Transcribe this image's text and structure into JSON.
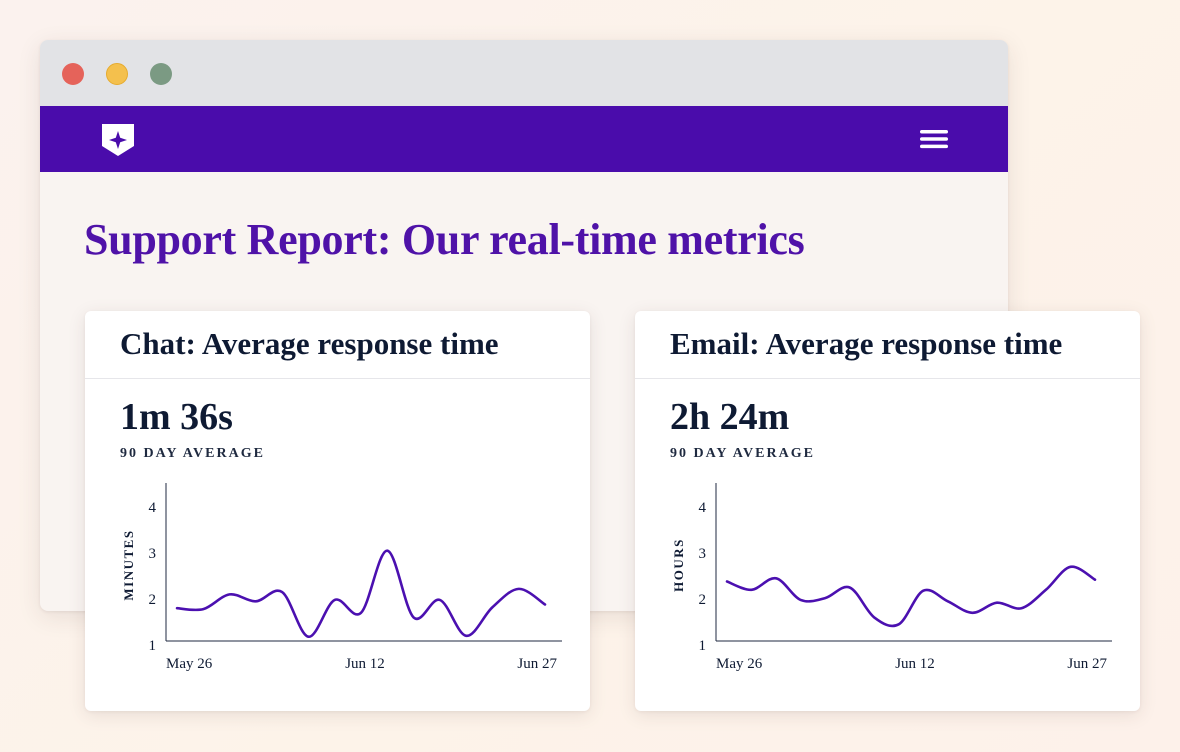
{
  "page": {
    "title": "Support Report: Our real-time metrics"
  },
  "browser": {
    "controls": [
      "close",
      "minimize",
      "maximize"
    ]
  },
  "navbar": {
    "logo_icon": "shield-star-icon",
    "menu_icon": "hamburger-menu-icon",
    "color": "#4a0cab"
  },
  "cards": [
    {
      "title": "Chat: Average response time",
      "value": "1m 36s",
      "subtitle": "90 DAY AVERAGE"
    },
    {
      "title": "Email: Average response time",
      "value": "2h 24m",
      "subtitle": "90 DAY AVERAGE"
    }
  ],
  "chart_data": [
    {
      "type": "line",
      "ylabel": "MINUTES",
      "xlabel": "",
      "ylim": [
        1,
        4
      ],
      "yticks": [
        "1",
        "2",
        "3",
        "4"
      ],
      "xticks": [
        "May 26",
        "Jun 12",
        "Jun 27"
      ],
      "grid": false,
      "line_color": "#4b10b0",
      "series": [
        {
          "x": [
            "May 22",
            "May 24",
            "May 26",
            "May 28",
            "May 30",
            "Jun 1",
            "Jun 3",
            "Jun 5",
            "Jun 7",
            "Jun 9",
            "Jun 11",
            "Jun 13",
            "Jun 15",
            "Jun 17",
            "Jun 19",
            "Jun 21",
            "Jun 23",
            "Jun 25",
            "Jun 27",
            "Jun 29"
          ],
          "values": [
            1.8,
            1.78,
            2.1,
            1.95,
            2.15,
            1.18,
            1.98,
            1.7,
            3.05,
            1.6,
            1.98,
            1.2,
            1.82,
            2.22,
            1.88,
            null,
            null,
            null,
            null,
            null
          ]
        }
      ]
    },
    {
      "type": "line",
      "ylabel": "HOURS",
      "xlabel": "",
      "ylim": [
        1,
        4
      ],
      "yticks": [
        "1",
        "2",
        "3",
        "4"
      ],
      "xticks": [
        "May 26",
        "Jun 12",
        "Jun 27"
      ],
      "grid": false,
      "line_color": "#4b10b0",
      "series": [
        {
          "x": [
            "May 22",
            "May 24",
            "May 26",
            "May 28",
            "May 30",
            "Jun 1",
            "Jun 3",
            "Jun 5",
            "Jun 7",
            "Jun 9",
            "Jun 11",
            "Jun 13",
            "Jun 15",
            "Jun 17",
            "Jun 19",
            "Jun 21"
          ],
          "values": [
            2.38,
            2.2,
            2.45,
            1.98,
            2.02,
            2.25,
            1.6,
            1.45,
            2.18,
            1.95,
            1.7,
            1.92,
            1.8,
            2.2,
            2.7,
            2.42
          ]
        }
      ]
    }
  ]
}
